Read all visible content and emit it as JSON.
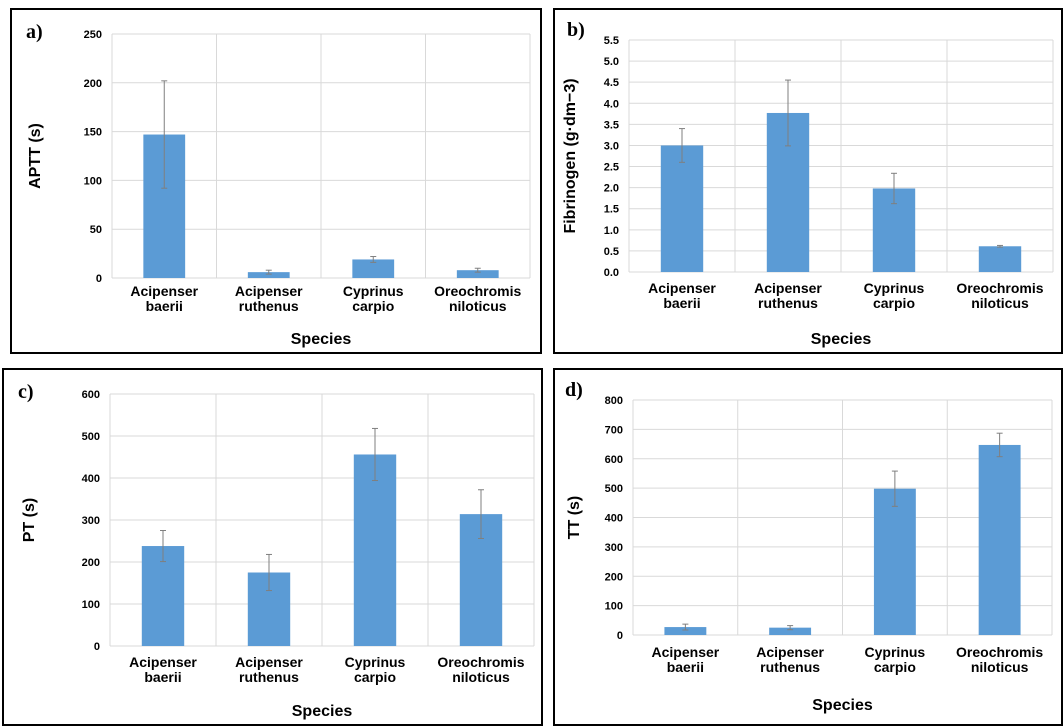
{
  "chart_data": [
    {
      "panel": "a)",
      "type": "bar",
      "categories": [
        [
          "Acipenser",
          "baerii"
        ],
        [
          "Acipenser",
          "ruthenus"
        ],
        [
          "Cyprinus",
          "carpio"
        ],
        [
          "Oreochromis",
          "niloticus"
        ]
      ],
      "values": [
        147,
        6,
        19,
        8
      ],
      "errors": [
        55,
        2,
        3,
        2
      ],
      "xlabel": "Species",
      "ylabel": "APTT (s)",
      "ylim": [
        0,
        250
      ],
      "yticks": [
        0,
        50,
        100,
        150,
        200,
        250
      ],
      "ytick_labels": [
        "0",
        "50",
        "100",
        "150",
        "200",
        "250"
      ],
      "grid": true
    },
    {
      "panel": "b)",
      "type": "bar",
      "categories": [
        [
          "Acipenser",
          "baerii"
        ],
        [
          "Acipenser",
          "ruthenus"
        ],
        [
          "Cyprinus",
          "carpio"
        ],
        [
          "Oreochromis",
          "niloticus"
        ]
      ],
      "values": [
        3.0,
        3.77,
        1.98,
        0.61
      ],
      "errors": [
        0.4,
        0.78,
        0.36,
        0.02
      ],
      "xlabel": "Species",
      "ylabel": "Fibrinogen (g·dm−3)",
      "ylim": [
        0,
        5.5
      ],
      "yticks": [
        0,
        0.5,
        1.0,
        1.5,
        2.0,
        2.5,
        3.0,
        3.5,
        4.0,
        4.5,
        5.0,
        5.5
      ],
      "ytick_labels": [
        "0.0",
        "0.5",
        "1.0",
        "1.5",
        "2.0",
        "2.5",
        "3.0",
        "3.5",
        "4.0",
        "4.5",
        "5.0",
        "5.5"
      ],
      "grid": true
    },
    {
      "panel": "c)",
      "type": "bar",
      "categories": [
        [
          "Acipenser",
          "baerii"
        ],
        [
          "Acipenser",
          "ruthenus"
        ],
        [
          "Cyprinus",
          "carpio"
        ],
        [
          "Oreochromis",
          "niloticus"
        ]
      ],
      "values": [
        238,
        175,
        456,
        314
      ],
      "errors": [
        37,
        43,
        62,
        58
      ],
      "xlabel": "Species",
      "ylabel": "PT (s)",
      "ylim": [
        0,
        600
      ],
      "yticks": [
        0,
        100,
        200,
        300,
        400,
        500,
        600
      ],
      "ytick_labels": [
        "0",
        "100",
        "200",
        "300",
        "400",
        "500",
        "600"
      ],
      "grid": true
    },
    {
      "panel": "d)",
      "type": "bar",
      "categories": [
        [
          "Acipenser",
          "baerii"
        ],
        [
          "Acipenser",
          "ruthenus"
        ],
        [
          "Cyprinus",
          "carpio"
        ],
        [
          "Oreochromis",
          "niloticus"
        ]
      ],
      "values": [
        27,
        25,
        498,
        647
      ],
      "errors": [
        10,
        7,
        60,
        40
      ],
      "xlabel": "Species",
      "ylabel": "TT (s)",
      "ylim": [
        0,
        800
      ],
      "yticks": [
        0,
        100,
        200,
        300,
        400,
        500,
        600,
        700,
        800
      ],
      "ytick_labels": [
        "0",
        "100",
        "200",
        "300",
        "400",
        "500",
        "600",
        "700",
        "800"
      ],
      "grid": true
    }
  ]
}
